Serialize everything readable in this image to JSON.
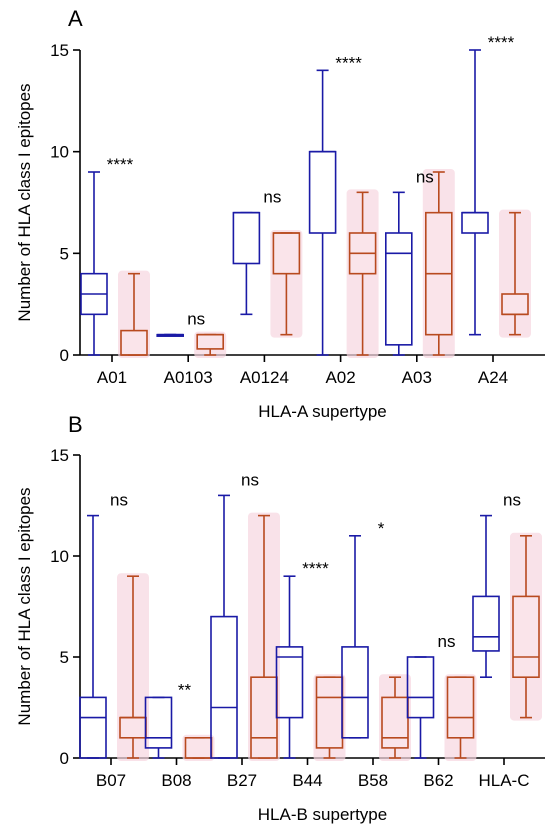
{
  "colors": {
    "series1": "#1a1aa6",
    "series2": "#b84a1f",
    "series2_halo": "#f7d6e0",
    "axis": "#000000"
  },
  "chart_data": [
    {
      "type": "box",
      "panel_label": "A",
      "xlabel": "HLA-A supertype",
      "ylabel": "Number of HLA class I epitopes",
      "ylim": [
        0,
        15
      ],
      "yticks": [
        0,
        5,
        10,
        15
      ],
      "categories": [
        "A01",
        "A0103",
        "A0124",
        "A02",
        "A03",
        "A24"
      ],
      "significance": [
        "****",
        "ns",
        "ns",
        "****",
        "ns",
        "****"
      ],
      "series": [
        {
          "color": "#1a1aa6",
          "boxes": [
            {
              "min": 0,
              "q1": 2,
              "median": 3,
              "q3": 4,
              "max": 9
            },
            {
              "min": 1,
              "q1": 1,
              "median": 1,
              "q3": 1,
              "max": 1
            },
            {
              "min": 2,
              "q1": 4.5,
              "median": 7,
              "q3": 7,
              "max": 7
            },
            {
              "min": 0,
              "q1": 6,
              "median": 10,
              "q3": 10,
              "max": 14
            },
            {
              "min": 0,
              "q1": 0.5,
              "median": 5,
              "q3": 6,
              "max": 8
            },
            {
              "min": 1,
              "q1": 6,
              "median": 7,
              "q3": 7,
              "max": 15
            }
          ]
        },
        {
          "color": "#b84a1f",
          "boxes": [
            {
              "min": 0,
              "q1": 0,
              "median": 0,
              "q3": 1.2,
              "max": 4
            },
            {
              "min": 0,
              "q1": 0.3,
              "median": 1,
              "q3": 1,
              "max": 1
            },
            {
              "min": 1,
              "q1": 4,
              "median": 6,
              "q3": 6,
              "max": 6
            },
            {
              "min": 0,
              "q1": 4,
              "median": 5,
              "q3": 6,
              "max": 8
            },
            {
              "min": 0,
              "q1": 1,
              "median": 4,
              "q3": 7,
              "max": 9
            },
            {
              "min": 1,
              "q1": 2,
              "median": 2,
              "q3": 3,
              "max": 7
            }
          ]
        }
      ]
    },
    {
      "type": "box",
      "panel_label": "B",
      "xlabel": "HLA-B supertype",
      "ylabel": "Number of HLA class I epitopes",
      "ylim": [
        0,
        15
      ],
      "yticks": [
        0,
        5,
        10,
        15
      ],
      "categories": [
        "B07",
        "B08",
        "B27",
        "B44",
        "B58",
        "B62",
        "HLA-C"
      ],
      "significance": [
        "ns",
        "**",
        "ns",
        "****",
        "*",
        "ns",
        "ns"
      ],
      "series": [
        {
          "color": "#1a1aa6",
          "boxes": [
            {
              "min": 0,
              "q1": 0,
              "median": 2,
              "q3": 3,
              "max": 12
            },
            {
              "min": 0,
              "q1": 0.5,
              "median": 1,
              "q3": 3,
              "max": 3
            },
            {
              "min": 0,
              "q1": 0,
              "median": 2.5,
              "q3": 7,
              "max": 13
            },
            {
              "min": 0,
              "q1": 2,
              "median": 5,
              "q3": 5.5,
              "max": 9
            },
            {
              "min": 1,
              "q1": 1,
              "median": 3,
              "q3": 5.5,
              "max": 11
            },
            {
              "min": 0,
              "q1": 2,
              "median": 3,
              "q3": 5,
              "max": 5
            },
            {
              "min": 4,
              "q1": 5.3,
              "median": 6,
              "q3": 8,
              "max": 12
            }
          ]
        },
        {
          "color": "#b84a1f",
          "boxes": [
            {
              "min": 0,
              "q1": 1,
              "median": 2,
              "q3": 2,
              "max": 9
            },
            {
              "min": 0,
              "q1": 0,
              "median": 0,
              "q3": 1,
              "max": 1
            },
            {
              "min": 0,
              "q1": 0,
              "median": 1,
              "q3": 4,
              "max": 12
            },
            {
              "min": 0,
              "q1": 0.5,
              "median": 3,
              "q3": 4,
              "max": 4
            },
            {
              "min": 0,
              "q1": 0.5,
              "median": 1,
              "q3": 3,
              "max": 4
            },
            {
              "min": 0,
              "q1": 1,
              "median": 2,
              "q3": 4,
              "max": 4
            },
            {
              "min": 2,
              "q1": 4,
              "median": 5,
              "q3": 8,
              "max": 11
            }
          ]
        }
      ]
    }
  ]
}
